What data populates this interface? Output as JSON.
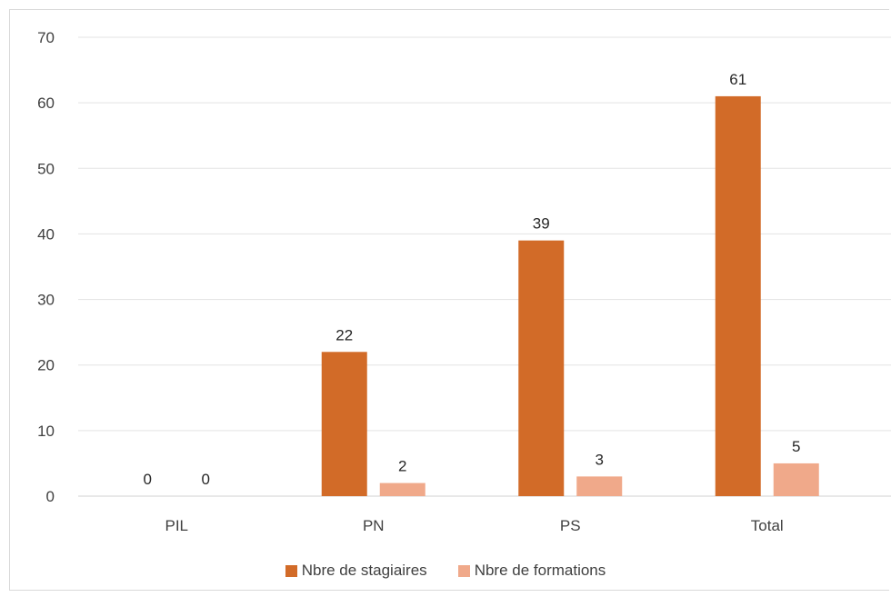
{
  "chart_data": {
    "type": "bar",
    "categories": [
      "PIL",
      "PN",
      "PS",
      "Total"
    ],
    "series": [
      {
        "name": "Nbre de stagiaires",
        "values": [
          0,
          22,
          39,
          61
        ],
        "color": "#d26b28"
      },
      {
        "name": "Nbre de formations",
        "values": [
          0,
          2,
          3,
          5
        ],
        "color": "#f0a98a"
      }
    ],
    "ylim": [
      0,
      70
    ],
    "yticks": [
      "0",
      "10",
      "20",
      "30",
      "40",
      "50",
      "60",
      "70"
    ],
    "grid": true,
    "legend_position": "bottom",
    "data_labels": true
  }
}
